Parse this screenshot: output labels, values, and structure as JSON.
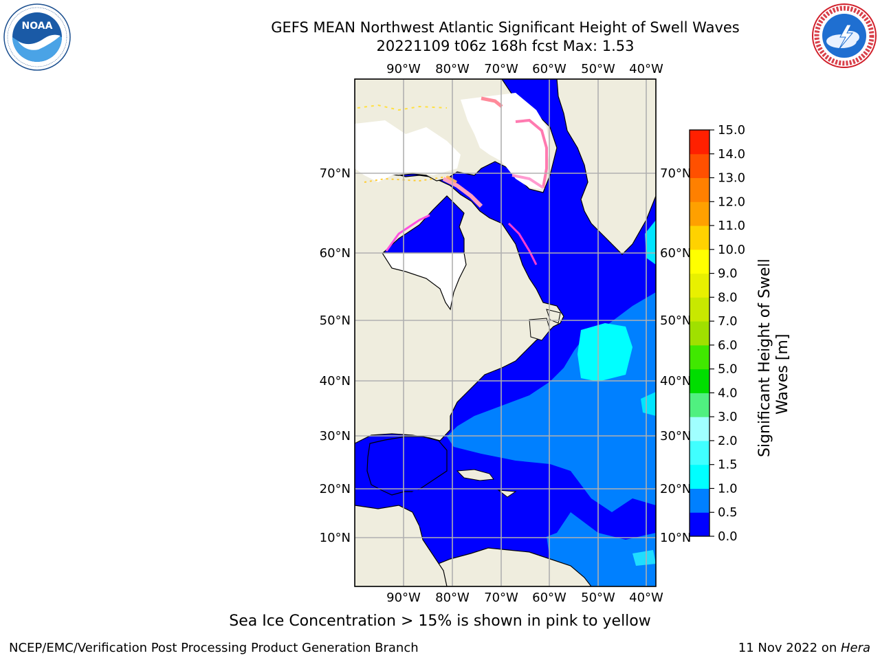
{
  "header": {
    "title_line1": "GEFS MEAN Northwest Atlantic Significant Height of Swell Waves",
    "title_line2": "20221109 t06z 168h fcst   Max: 1.53",
    "left_logo": {
      "text": "NOAA",
      "ring_text": "NATIONAL OCEANIC AND ATMOSPHERIC ADMINISTRATION · U.S. DEPARTMENT OF COMMERCE"
    },
    "right_logo": {
      "ring_text": "NATIONAL WEATHER SERVICE"
    }
  },
  "map": {
    "lon_labels": [
      "90°W",
      "80°W",
      "70°W",
      "60°W",
      "50°W",
      "40°W"
    ],
    "lat_labels": [
      "70°N",
      "60°N",
      "50°N",
      "40°N",
      "30°N",
      "20°N",
      "10°N"
    ],
    "colors": {
      "land": "#efedde",
      "ice_free_white": "#ffffff",
      "grid": "#b0b0b0",
      "coast": "#000000"
    }
  },
  "colorbar": {
    "label": "Significant Height of Swell Waves [m]",
    "ticks": [
      "0.0",
      "0.5",
      "1.0",
      "1.5",
      "2.0",
      "3.0",
      "4.0",
      "5.0",
      "6.0",
      "7.0",
      "8.0",
      "9.0",
      "10.0",
      "11.0",
      "12.0",
      "13.0",
      "14.0",
      "15.0"
    ],
    "colors": [
      "#0000ff",
      "#0080ff",
      "#00ffff",
      "#40ffff",
      "#a0ffff",
      "#50f080",
      "#00dd00",
      "#40e800",
      "#a0e000",
      "#c8e800",
      "#e8f000",
      "#ffff00",
      "#ffd200",
      "#ffa000",
      "#ff8000",
      "#ff5000",
      "#ff2000"
    ]
  },
  "footer": {
    "note": "Sea Ice Concentration > 15% is shown in pink to yellow",
    "left": "NCEP/EMC/Verification Post Processing Product Generation Branch",
    "right_date": "11 Nov 2022 on ",
    "right_host": "Hera"
  }
}
